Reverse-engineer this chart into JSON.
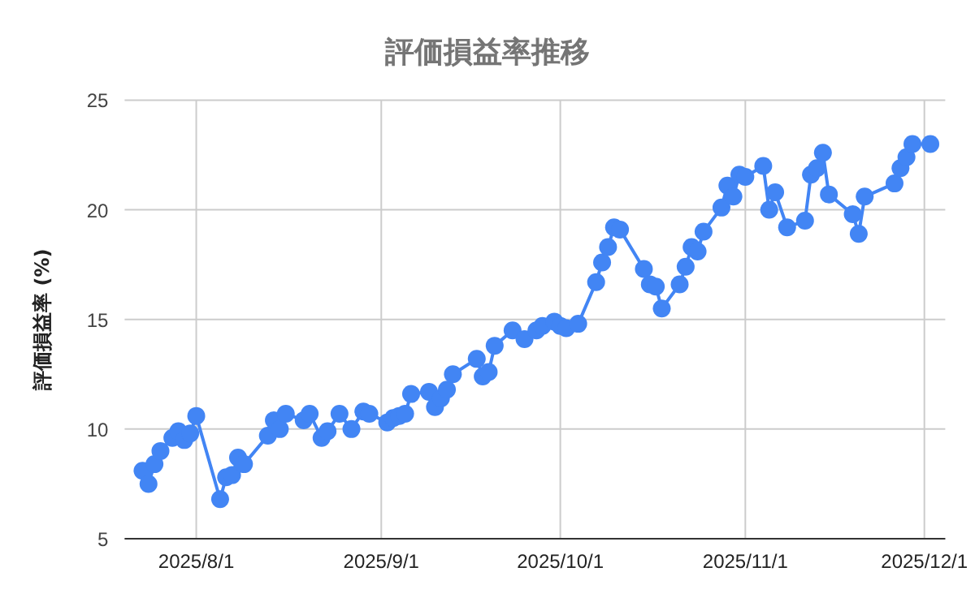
{
  "chart_data": {
    "type": "line",
    "title": "評価損益率推移",
    "ylabel": "評価損益率 (%)",
    "x": [
      "2025-07-23",
      "2025-07-24",
      "2025-07-25",
      "2025-07-26",
      "2025-07-28",
      "2025-07-29",
      "2025-07-30",
      "2025-07-31",
      "2025-08-01",
      "2025-08-05",
      "2025-08-06",
      "2025-08-07",
      "2025-08-08",
      "2025-08-09",
      "2025-08-13",
      "2025-08-14",
      "2025-08-15",
      "2025-08-16",
      "2025-08-19",
      "2025-08-20",
      "2025-08-22",
      "2025-08-23",
      "2025-08-25",
      "2025-08-27",
      "2025-08-29",
      "2025-08-30",
      "2025-09-02",
      "2025-09-03",
      "2025-09-04",
      "2025-09-05",
      "2025-09-06",
      "2025-09-09",
      "2025-09-10",
      "2025-09-11",
      "2025-09-12",
      "2025-09-13",
      "2025-09-17",
      "2025-09-18",
      "2025-09-19",
      "2025-09-20",
      "2025-09-23",
      "2025-09-25",
      "2025-09-27",
      "2025-09-28",
      "2025-09-30",
      "2025-10-01",
      "2025-10-02",
      "2025-10-04",
      "2025-10-07",
      "2025-10-08",
      "2025-10-09",
      "2025-10-10",
      "2025-10-11",
      "2025-10-15",
      "2025-10-16",
      "2025-10-17",
      "2025-10-18",
      "2025-10-21",
      "2025-10-22",
      "2025-10-23",
      "2025-10-24",
      "2025-10-25",
      "2025-10-28",
      "2025-10-29",
      "2025-10-30",
      "2025-10-31",
      "2025-11-01",
      "2025-11-04",
      "2025-11-05",
      "2025-11-06",
      "2025-11-08",
      "2025-11-11",
      "2025-11-12",
      "2025-11-13",
      "2025-11-14",
      "2025-11-15",
      "2025-11-19",
      "2025-11-20",
      "2025-11-21",
      "2025-11-26",
      "2025-11-27",
      "2025-11-28",
      "2025-11-29",
      "2025-12-02"
    ],
    "series": [
      {
        "color": "#4285f4",
        "values": [
          8.1,
          7.5,
          8.4,
          9.0,
          9.6,
          9.9,
          9.5,
          9.8,
          10.6,
          6.8,
          7.8,
          7.9,
          8.7,
          8.4,
          9.7,
          10.4,
          10.0,
          10.7,
          10.4,
          10.7,
          9.6,
          9.9,
          10.7,
          10.0,
          10.8,
          10.7,
          10.3,
          10.5,
          10.6,
          10.7,
          11.6,
          11.7,
          11.0,
          11.4,
          11.8,
          12.5,
          13.2,
          12.4,
          12.6,
          13.8,
          14.5,
          14.1,
          14.5,
          14.7,
          14.9,
          14.7,
          14.6,
          14.8,
          16.7,
          17.6,
          18.3,
          19.2,
          19.1,
          17.3,
          16.6,
          16.5,
          15.5,
          16.6,
          17.4,
          18.3,
          18.1,
          19.0,
          20.1,
          21.1,
          20.6,
          21.6,
          21.5,
          22.0,
          20.0,
          20.8,
          19.2,
          19.5,
          21.6,
          21.9,
          22.6,
          20.7,
          19.8,
          18.9,
          20.6,
          21.2,
          21.9,
          22.4,
          23.0,
          23.0
        ]
      }
    ],
    "xlim": [
      "2025-07-20",
      "2025-12-04T12:00"
    ],
    "xticks": [
      {
        "value": "2025-08-01",
        "label": "2025/8/1"
      },
      {
        "value": "2025-09-01",
        "label": "2025/9/1"
      },
      {
        "value": "2025-10-01",
        "label": "2025/10/1"
      },
      {
        "value": "2025-11-01",
        "label": "2025/11/1"
      },
      {
        "value": "2025-12-01",
        "label": "2025/12/1"
      }
    ],
    "ylim": [
      5,
      25
    ],
    "yticks": [
      5,
      10,
      15,
      20,
      25
    ],
    "grid": true,
    "marker": "circle",
    "line_style": "solid"
  }
}
